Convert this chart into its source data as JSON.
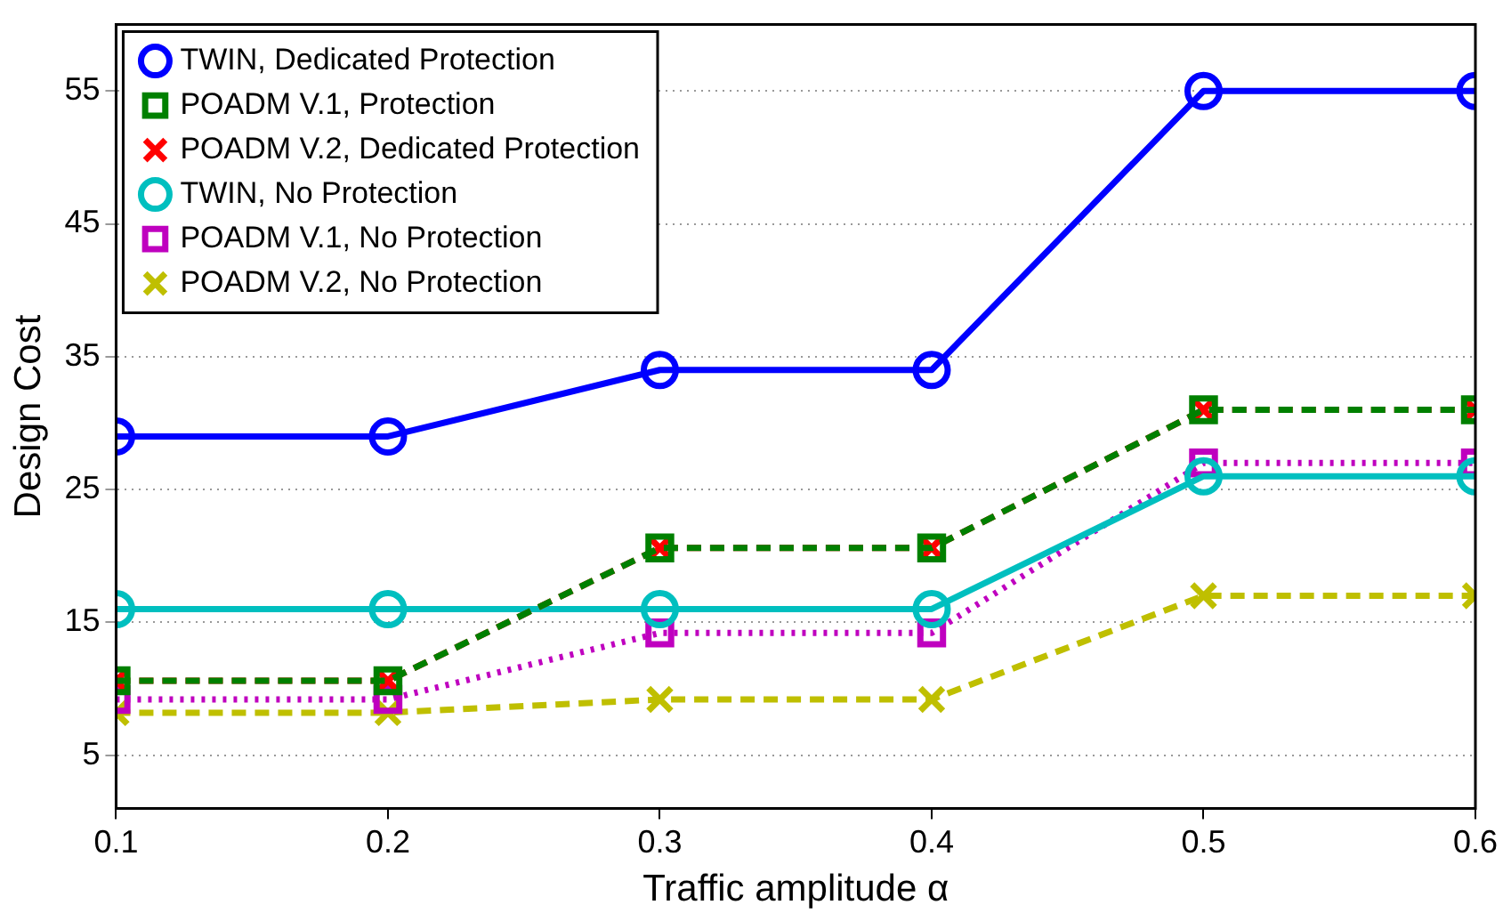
{
  "chart_data": {
    "type": "line",
    "xlabel": "Traffic amplitude α",
    "ylabel": "Design Cost",
    "x": [
      0.1,
      0.2,
      0.3,
      0.4,
      0.5,
      0.6
    ],
    "xlim": [
      0.1,
      0.6
    ],
    "xticks": [
      0.1,
      0.2,
      0.3,
      0.4,
      0.5,
      0.6
    ],
    "ylim": [
      1,
      60
    ],
    "yticks": [
      5,
      15,
      25,
      35,
      45,
      55
    ],
    "grid": "y",
    "legend": "top left",
    "series": [
      {
        "name": "TWIN, Dedicated Protection",
        "color": "#0000ff",
        "marker": "circle",
        "line_style": "solid",
        "values": [
          29,
          29,
          34,
          34,
          55,
          55
        ]
      },
      {
        "name": "POADM V.1, Protection",
        "color": "#008000",
        "marker": "square",
        "line_style": "dashed",
        "values": [
          10.6,
          10.6,
          20.6,
          20.6,
          31,
          31
        ]
      },
      {
        "name": "POADM V.2, Dedicated Protection",
        "color": "#ff0000",
        "marker": "cross",
        "line_style": "dashed",
        "values": [
          10.6,
          10.6,
          20.6,
          20.6,
          31,
          31
        ]
      },
      {
        "name": "TWIN, No Protection",
        "color": "#00bfbf",
        "marker": "circle",
        "line_style": "solid",
        "values": [
          16,
          16,
          16,
          16,
          26,
          26
        ]
      },
      {
        "name": "POADM V.1, No Protection",
        "color": "#bf00bf",
        "marker": "square",
        "line_style": "dotted",
        "values": [
          9.2,
          9.2,
          14.2,
          14.2,
          27,
          27
        ]
      },
      {
        "name": "POADM V.2, No Protection",
        "color": "#bfbf00",
        "marker": "cross",
        "line_style": "dashed",
        "values": [
          8.2,
          8.2,
          9.2,
          9.2,
          17,
          17
        ]
      }
    ]
  }
}
